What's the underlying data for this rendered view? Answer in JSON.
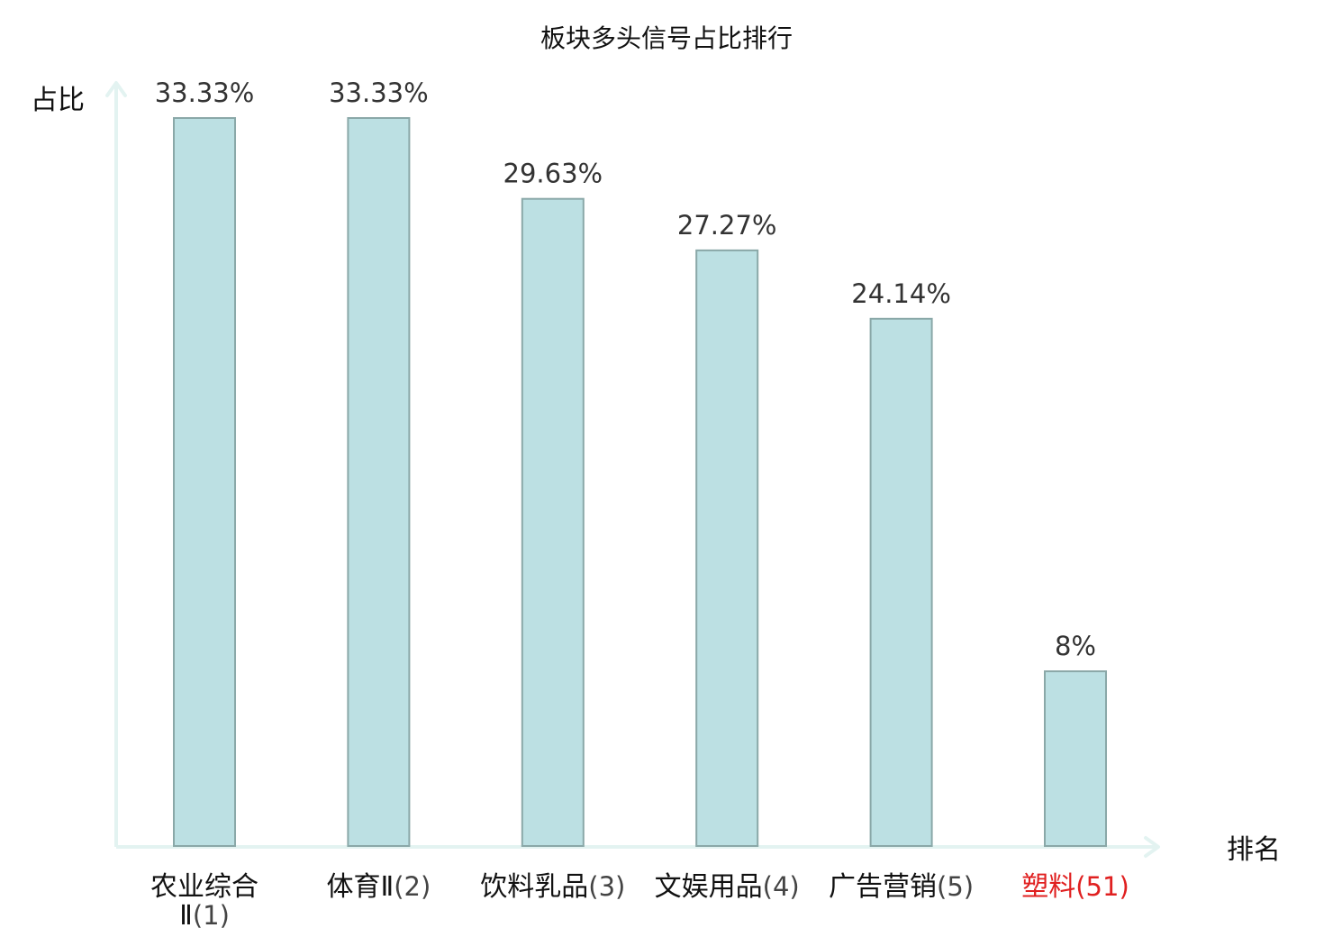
{
  "chart_data": {
    "type": "bar",
    "title": "板块多头信号占比排行",
    "xlabel": "排名",
    "ylabel": "占比",
    "categories": [
      {
        "name_lines": [
          "农业综合",
          "Ⅱ"
        ],
        "rank": "(1)",
        "highlight": false
      },
      {
        "name_lines": [
          "体育Ⅱ"
        ],
        "rank": "(2)",
        "highlight": false
      },
      {
        "name_lines": [
          "饮料乳品"
        ],
        "rank": "(3)",
        "highlight": false
      },
      {
        "name_lines": [
          "文娱用品"
        ],
        "rank": "(4)",
        "highlight": false
      },
      {
        "name_lines": [
          "广告营销"
        ],
        "rank": "(5)",
        "highlight": false
      },
      {
        "name_lines": [
          "塑料"
        ],
        "rank": "(51)",
        "highlight": true
      }
    ],
    "values": [
      33.33,
      33.33,
      29.63,
      27.27,
      24.14,
      8
    ],
    "value_labels": [
      "33.33%",
      "33.33%",
      "29.63%",
      "27.27%",
      "24.14%",
      "8%"
    ],
    "ylim": [
      0,
      33.33
    ],
    "grid": false,
    "legend": "none",
    "colors": {
      "bar_fill": "#bce0e3",
      "bar_stroke": "#8aa8a8",
      "axis": "#e3f3f1",
      "text": "#111111",
      "value_text": "#333333",
      "rank_text": "#444444",
      "highlight": "#e02020"
    }
  }
}
